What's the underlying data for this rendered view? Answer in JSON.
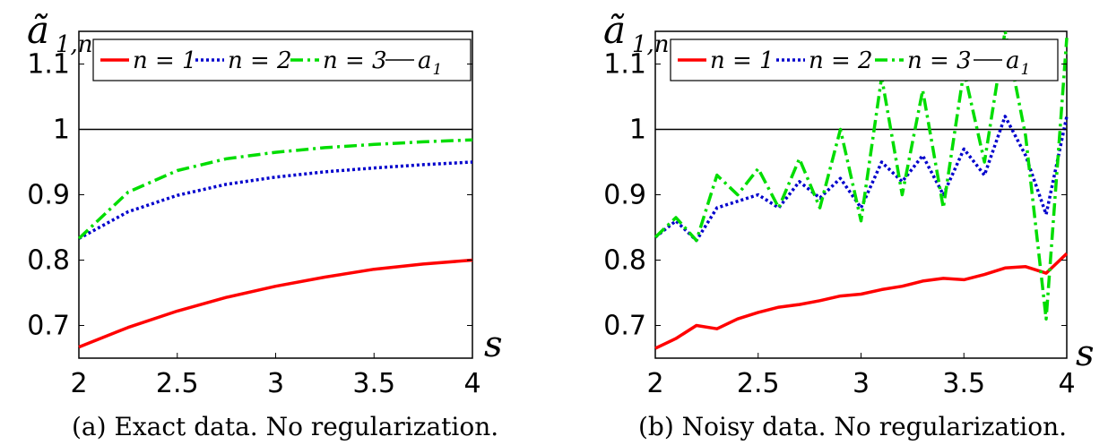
{
  "figure": {
    "panels": [
      {
        "ylabel": "ã",
        "ylabel_sub": "1,n",
        "xlabel": "s",
        "caption": "(a) Exact data. No regularization.",
        "xticks": [
          "2",
          "2.5",
          "3",
          "3.5",
          "4"
        ],
        "yticks": [
          "0.7",
          "0.8",
          "0.9",
          "1",
          "1.1"
        ],
        "legend": [
          {
            "label": "n = 1",
            "color": "#ff0000",
            "style": "solid"
          },
          {
            "label": "n = 2",
            "color": "#0000cc",
            "style": "dotted"
          },
          {
            "label": "n = 3",
            "color": "#00dd00",
            "style": "dashdot"
          },
          {
            "label": "a",
            "label_sub": "1",
            "color": "#000000",
            "style": "thin"
          }
        ]
      },
      {
        "ylabel": "ã",
        "ylabel_sub": "1,n",
        "xlabel": "s",
        "caption": "(b) Noisy data. No regularization.",
        "xticks": [
          "2",
          "2.5",
          "3",
          "3.5",
          "4"
        ],
        "yticks": [
          "0.7",
          "0.8",
          "0.9",
          "1",
          "1.1"
        ],
        "legend": [
          {
            "label": "n = 1",
            "color": "#ff0000",
            "style": "solid"
          },
          {
            "label": "n = 2",
            "color": "#0000cc",
            "style": "dotted"
          },
          {
            "label": "n = 3",
            "color": "#00dd00",
            "style": "dashdot"
          },
          {
            "label": "a",
            "label_sub": "1",
            "color": "#000000",
            "style": "thin"
          }
        ]
      }
    ]
  },
  "chart_data": [
    {
      "type": "line",
      "title": "",
      "xlabel": "s",
      "ylabel": "ã_{1,n}",
      "xlim": [
        2,
        4
      ],
      "ylim": [
        0.65,
        1.15
      ],
      "grid": false,
      "legend_position": "top",
      "x": [
        2.0,
        2.25,
        2.5,
        2.75,
        3.0,
        3.25,
        3.5,
        3.75,
        4.0
      ],
      "series": [
        {
          "name": "n = 1",
          "color": "#ff0000",
          "values": [
            0.667,
            0.697,
            0.722,
            0.743,
            0.76,
            0.774,
            0.786,
            0.794,
            0.8
          ]
        },
        {
          "name": "n = 2",
          "color": "#0000cc",
          "values": [
            0.833,
            0.874,
            0.899,
            0.916,
            0.927,
            0.935,
            0.941,
            0.946,
            0.95
          ]
        },
        {
          "name": "n = 3",
          "color": "#00dd00",
          "values": [
            0.833,
            0.904,
            0.937,
            0.955,
            0.965,
            0.972,
            0.977,
            0.981,
            0.984
          ]
        },
        {
          "name": "a_1",
          "color": "#000000",
          "values": [
            1,
            1,
            1,
            1,
            1,
            1,
            1,
            1,
            1
          ]
        }
      ]
    },
    {
      "type": "line",
      "title": "",
      "xlabel": "s",
      "ylabel": "ã_{1,n}",
      "xlim": [
        2,
        4
      ],
      "ylim": [
        0.65,
        1.15
      ],
      "grid": false,
      "legend_position": "top",
      "x": [
        2.0,
        2.1,
        2.2,
        2.3,
        2.4,
        2.5,
        2.6,
        2.7,
        2.8,
        2.9,
        3.0,
        3.1,
        3.2,
        3.3,
        3.4,
        3.5,
        3.6,
        3.7,
        3.8,
        3.9,
        4.0
      ],
      "series": [
        {
          "name": "n = 1",
          "color": "#ff0000",
          "values": [
            0.665,
            0.68,
            0.7,
            0.695,
            0.71,
            0.72,
            0.728,
            0.732,
            0.738,
            0.745,
            0.748,
            0.755,
            0.76,
            0.768,
            0.772,
            0.77,
            0.778,
            0.788,
            0.79,
            0.78,
            0.81
          ]
        },
        {
          "name": "n = 2",
          "color": "#0000cc",
          "values": [
            0.835,
            0.86,
            0.83,
            0.88,
            0.89,
            0.9,
            0.88,
            0.92,
            0.895,
            0.925,
            0.88,
            0.95,
            0.92,
            0.96,
            0.9,
            0.97,
            0.93,
            1.02,
            0.96,
            0.87,
            1.02
          ]
        },
        {
          "name": "n = 3",
          "color": "#00dd00",
          "values": [
            0.835,
            0.865,
            0.83,
            0.93,
            0.9,
            0.94,
            0.88,
            0.955,
            0.88,
            1.0,
            0.86,
            1.08,
            0.9,
            1.06,
            0.88,
            1.09,
            0.95,
            1.15,
            0.99,
            0.71,
            1.14
          ]
        },
        {
          "name": "a_1",
          "color": "#000000",
          "values": [
            1,
            1,
            1,
            1,
            1,
            1,
            1,
            1,
            1,
            1,
            1,
            1,
            1,
            1,
            1,
            1,
            1,
            1,
            1,
            1,
            1
          ]
        }
      ]
    }
  ]
}
